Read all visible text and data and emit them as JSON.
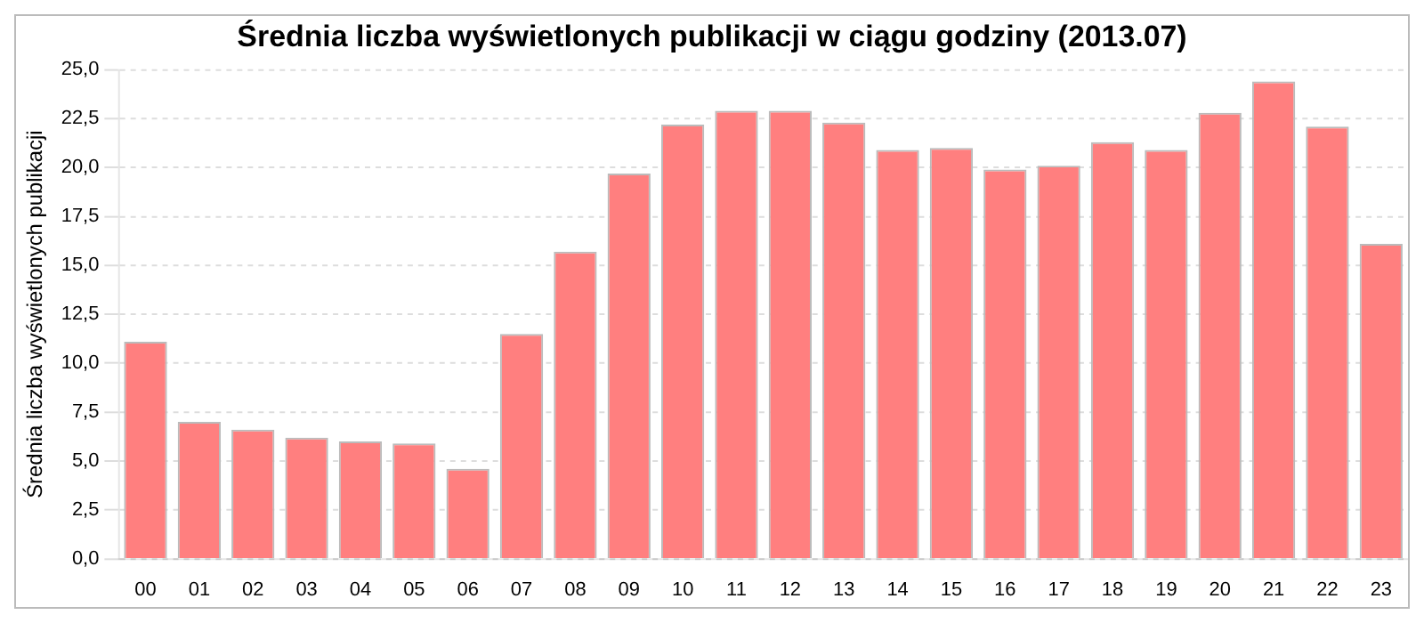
{
  "chart_data": {
    "type": "bar",
    "title": "Średnia liczba wyświetlonych publikacji w ciągu godziny (2013.07)",
    "ylabel": "Średnia liczba wyświetlonych publikacji",
    "categories": [
      "00",
      "01",
      "02",
      "03",
      "04",
      "05",
      "06",
      "07",
      "08",
      "09",
      "10",
      "11",
      "12",
      "13",
      "14",
      "15",
      "16",
      "17",
      "18",
      "19",
      "20",
      "21",
      "22",
      "23"
    ],
    "values": [
      11.1,
      7.0,
      6.6,
      6.2,
      6.0,
      5.9,
      4.6,
      11.5,
      15.7,
      19.7,
      22.2,
      22.9,
      22.9,
      22.3,
      20.9,
      21.0,
      19.9,
      20.1,
      21.3,
      20.9,
      22.8,
      24.4,
      22.1,
      16.1
    ],
    "color": "#ff7f7f",
    "ylim": [
      0,
      25
    ],
    "yticks": [
      {
        "value": 0,
        "label": "0,0"
      },
      {
        "value": 2.5,
        "label": "2,5"
      },
      {
        "value": 5,
        "label": "5,0"
      },
      {
        "value": 7.5,
        "label": "7,5"
      },
      {
        "value": 10,
        "label": "10,0"
      },
      {
        "value": 12.5,
        "label": "12,5"
      },
      {
        "value": 15,
        "label": "15,0"
      },
      {
        "value": 17.5,
        "label": "17,5"
      },
      {
        "value": 20,
        "label": "20,0"
      },
      {
        "value": 22.5,
        "label": "22,5"
      },
      {
        "value": 25,
        "label": "25,0"
      }
    ],
    "grid": "y"
  }
}
